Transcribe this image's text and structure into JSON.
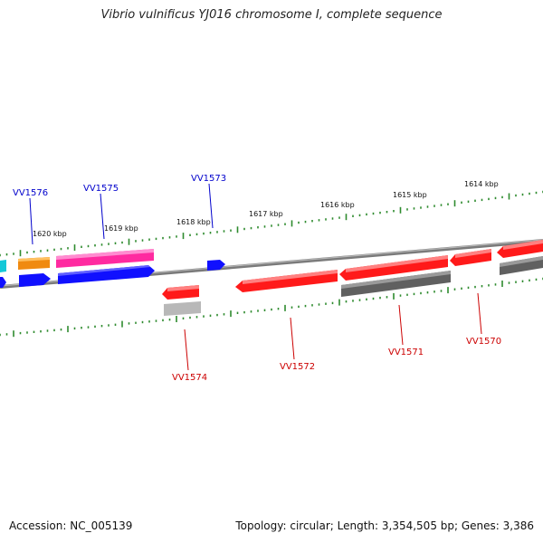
{
  "title": "Vibrio vulnificus YJ016 chromosome I, complete sequence",
  "footer": {
    "accession": "Accession: NC_005139",
    "summary": "Topology: circular; Length: 3,354,505 bp; Genes: 3,386"
  },
  "scale_ticks": [
    "1620 kbp",
    "1619 kbp",
    "1618 kbp",
    "1617 kbp",
    "1616 kbp",
    "1615 kbp",
    "1614 kbp"
  ],
  "gene_labels": [
    {
      "id": "VV1576",
      "strand": "forward"
    },
    {
      "id": "VV1575",
      "strand": "forward"
    },
    {
      "id": "VV1573",
      "strand": "forward"
    },
    {
      "id": "VV1574",
      "strand": "reverse"
    },
    {
      "id": "VV1572",
      "strand": "reverse"
    },
    {
      "id": "VV1571",
      "strand": "reverse"
    },
    {
      "id": "VV1570",
      "strand": "reverse"
    }
  ],
  "colors": {
    "backbone": "#888888",
    "scale": "#2e8b2e",
    "forward_label": "#0000cc",
    "reverse_label": "#cc0000",
    "red": "#ff1a1a",
    "blue": "#1010ff",
    "pink": "#ff2aa0",
    "orange": "#f08a10",
    "cyan": "#14c8d8",
    "dark_gray": "#606060",
    "light_gray": "#b8b8b8"
  }
}
